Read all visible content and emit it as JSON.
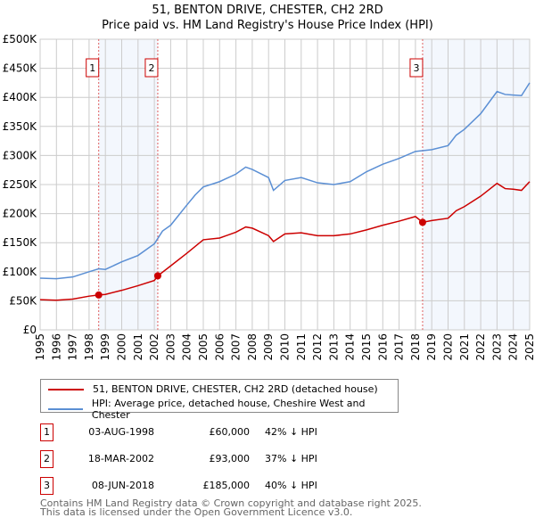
{
  "chart_data": {
    "type": "line",
    "title": "51, BENTON DRIVE, CHESTER, CH2 2RD",
    "subtitle": "Price paid vs. HM Land Registry's House Price Index (HPI)",
    "xlim": [
      1995,
      2025
    ],
    "ylim": [
      0,
      500000
    ],
    "x_ticks": [
      "1995",
      "1996",
      "1997",
      "1998",
      "1999",
      "2000",
      "2001",
      "2002",
      "2003",
      "2004",
      "2005",
      "2006",
      "2007",
      "2008",
      "2009",
      "2010",
      "2011",
      "2012",
      "2013",
      "2014",
      "2015",
      "2016",
      "2017",
      "2018",
      "2019",
      "2020",
      "2021",
      "2022",
      "2023",
      "2024",
      "2025"
    ],
    "y_ticks": [
      {
        "v": 0,
        "label": "£0"
      },
      {
        "v": 50000,
        "label": "£50K"
      },
      {
        "v": 100000,
        "label": "£100K"
      },
      {
        "v": 150000,
        "label": "£150K"
      },
      {
        "v": 200000,
        "label": "£200K"
      },
      {
        "v": 250000,
        "label": "£250K"
      },
      {
        "v": 300000,
        "label": "£300K"
      },
      {
        "v": 350000,
        "label": "£350K"
      },
      {
        "v": 400000,
        "label": "£400K"
      },
      {
        "v": 450000,
        "label": "£450K"
      },
      {
        "v": 500000,
        "label": "£500K"
      }
    ],
    "grid": true,
    "series": [
      {
        "name": "51, BENTON DRIVE, CHESTER, CH2 2RD (detached house)",
        "color": "#cc0000",
        "x": [
          1995,
          1996,
          1997,
          1998,
          1998.59,
          1999,
          2000,
          2001,
          2002,
          2002.21,
          2003,
          2004,
          2005,
          2006,
          2007,
          2007.6,
          2008,
          2009,
          2009.3,
          2010,
          2011,
          2012,
          2013,
          2014,
          2015,
          2016,
          2017,
          2018,
          2018.44,
          2019,
          2020,
          2020.5,
          2021,
          2022,
          2023,
          2023.5,
          2024,
          2024.5,
          2025
        ],
        "y": [
          52000,
          51000,
          53000,
          58000,
          60000,
          61000,
          68000,
          76000,
          85000,
          93000,
          110000,
          132000,
          155000,
          158000,
          168000,
          177000,
          175000,
          162000,
          152000,
          165000,
          167000,
          162000,
          162000,
          165000,
          172000,
          180000,
          187000,
          195000,
          185000,
          188000,
          192000,
          205000,
          212000,
          230000,
          252000,
          243000,
          242000,
          240000,
          255000
        ]
      },
      {
        "name": "HPI: Average price, detached house, Cheshire West and Chester",
        "color": "#5b8fd4",
        "x": [
          1995,
          1996,
          1997,
          1998,
          1998.59,
          1999,
          2000,
          2001,
          2002,
          2002.5,
          2003,
          2004,
          2004.5,
          2005,
          2006,
          2007,
          2007.6,
          2008,
          2009,
          2009.3,
          2010,
          2011,
          2012,
          2013,
          2014,
          2015,
          2016,
          2017,
          2018,
          2019,
          2020,
          2020.5,
          2021,
          2022,
          2023,
          2023.5,
          2024,
          2024.5,
          2025
        ],
        "y": [
          89000,
          88000,
          91000,
          100000,
          105000,
          104000,
          117000,
          128000,
          148000,
          170000,
          180000,
          215000,
          232000,
          246000,
          255000,
          268000,
          280000,
          276000,
          262000,
          240000,
          257000,
          262000,
          253000,
          250000,
          255000,
          272000,
          285000,
          295000,
          307000,
          310000,
          317000,
          335000,
          345000,
          372000,
          410000,
          405000,
          404000,
          403000,
          425000
        ]
      }
    ],
    "sales": [
      {
        "label": "1",
        "x": 1998.59,
        "y": 60000
      },
      {
        "label": "2",
        "x": 2002.21,
        "y": 93000
      },
      {
        "label": "3",
        "x": 2018.44,
        "y": 185000
      }
    ],
    "shaded": [
      [
        1998.59,
        2002.21
      ],
      [
        2018.44,
        2025
      ]
    ]
  },
  "legend": [
    "51, BENTON DRIVE, CHESTER, CH2 2RD (detached house)",
    "HPI: Average price, detached house, Cheshire West and Chester"
  ],
  "table": [
    {
      "num": "1",
      "date": "03-AUG-1998",
      "price": "£60,000",
      "hpi": "42% ↓ HPI"
    },
    {
      "num": "2",
      "date": "18-MAR-2002",
      "price": "£93,000",
      "hpi": "37% ↓ HPI"
    },
    {
      "num": "3",
      "date": "08-JUN-2018",
      "price": "£185,000",
      "hpi": "40% ↓ HPI"
    }
  ],
  "footer": [
    "Contains HM Land Registry data © Crown copyright and database right 2025.",
    "This data is licensed under the Open Government Licence v3.0."
  ]
}
